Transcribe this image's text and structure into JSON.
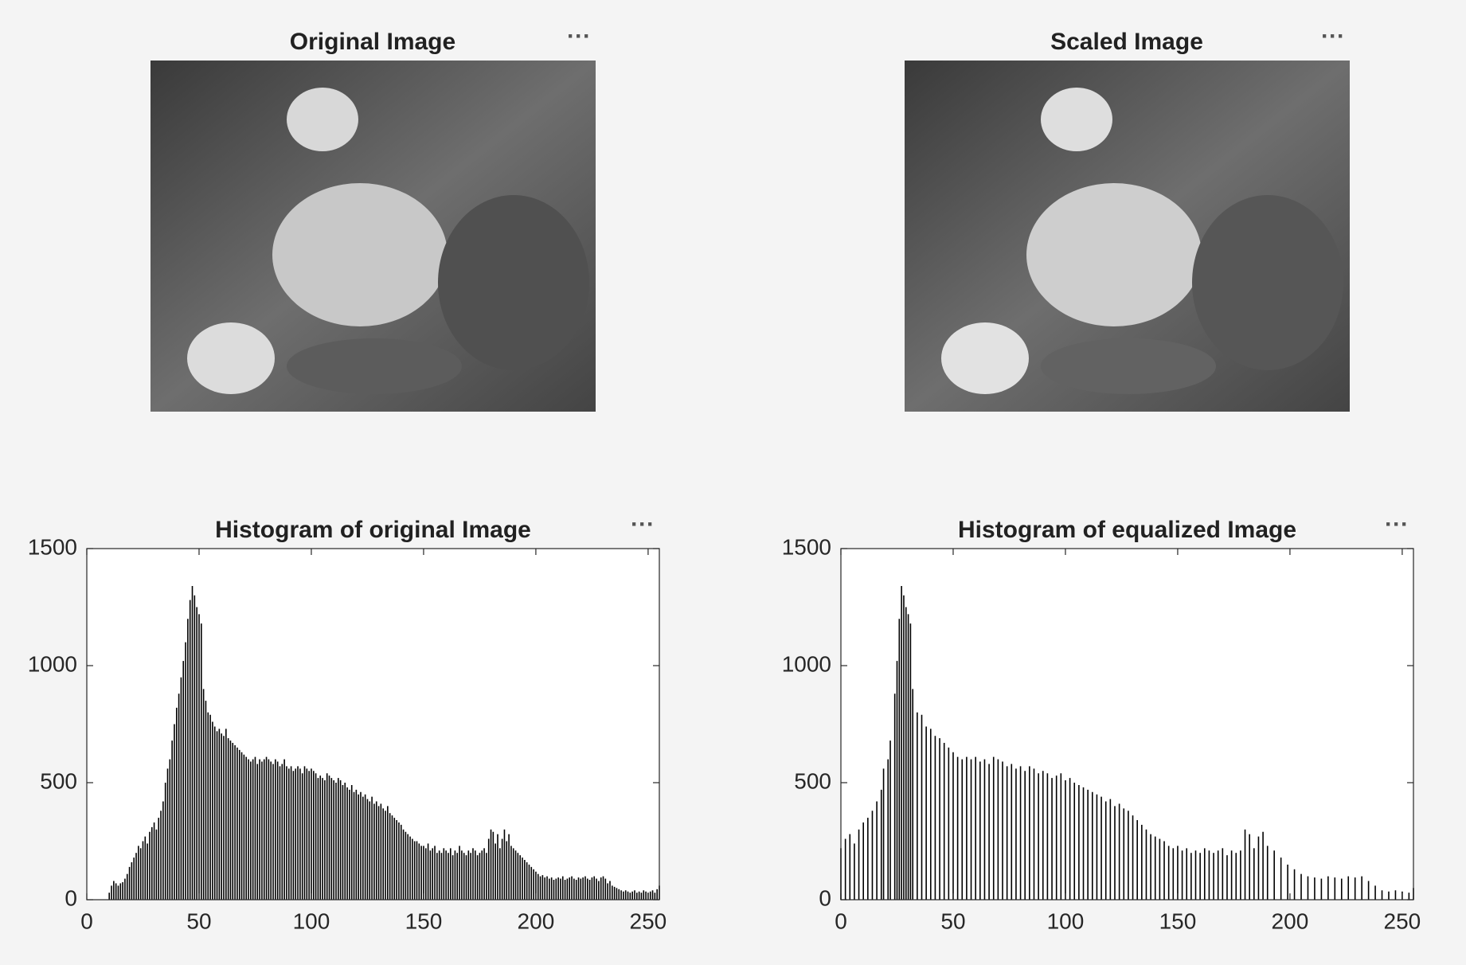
{
  "images": [
    {
      "title": "Original Image"
    },
    {
      "title": "Scaled Image"
    }
  ],
  "chart_data": [
    {
      "type": "stem",
      "title": "Histogram of original Image",
      "color": "#000000",
      "xlim": [
        0,
        255
      ],
      "xticks": [
        0,
        50,
        100,
        150,
        200,
        250
      ],
      "ylim": [
        0,
        1500
      ],
      "yticks": [
        0,
        500,
        1000,
        1500
      ],
      "x": [
        10,
        11,
        12,
        13,
        14,
        15,
        16,
        17,
        18,
        19,
        20,
        21,
        22,
        23,
        24,
        25,
        26,
        27,
        28,
        29,
        30,
        31,
        32,
        33,
        34,
        35,
        36,
        37,
        38,
        39,
        40,
        41,
        42,
        43,
        44,
        45,
        46,
        47,
        48,
        49,
        50,
        51,
        52,
        53,
        54,
        55,
        56,
        57,
        58,
        59,
        60,
        61,
        62,
        63,
        64,
        65,
        66,
        67,
        68,
        69,
        70,
        71,
        72,
        73,
        74,
        75,
        76,
        77,
        78,
        79,
        80,
        81,
        82,
        83,
        84,
        85,
        86,
        87,
        88,
        89,
        90,
        91,
        92,
        93,
        94,
        95,
        96,
        97,
        98,
        99,
        100,
        101,
        102,
        103,
        104,
        105,
        106,
        107,
        108,
        109,
        110,
        111,
        112,
        113,
        114,
        115,
        116,
        117,
        118,
        119,
        120,
        121,
        122,
        123,
        124,
        125,
        126,
        127,
        128,
        129,
        130,
        131,
        132,
        133,
        134,
        135,
        136,
        137,
        138,
        139,
        140,
        141,
        142,
        143,
        144,
        145,
        146,
        147,
        148,
        149,
        150,
        151,
        152,
        153,
        154,
        155,
        156,
        157,
        158,
        159,
        160,
        161,
        162,
        163,
        164,
        165,
        166,
        167,
        168,
        169,
        170,
        171,
        172,
        173,
        174,
        175,
        176,
        177,
        178,
        179,
        180,
        181,
        182,
        183,
        184,
        185,
        186,
        187,
        188,
        189,
        190,
        191,
        192,
        193,
        194,
        195,
        196,
        197,
        198,
        199,
        200,
        201,
        202,
        203,
        204,
        205,
        206,
        207,
        208,
        209,
        210,
        211,
        212,
        213,
        214,
        215,
        216,
        217,
        218,
        219,
        220,
        221,
        222,
        223,
        224,
        225,
        226,
        227,
        228,
        229,
        230,
        231,
        232,
        233,
        234,
        235,
        236,
        237,
        238,
        239,
        240,
        241,
        242,
        243,
        244,
        245,
        246,
        247,
        248,
        249,
        250,
        251,
        252,
        253,
        254,
        255
      ],
      "values": [
        30,
        60,
        80,
        70,
        60,
        70,
        75,
        90,
        110,
        140,
        160,
        180,
        200,
        230,
        220,
        250,
        270,
        240,
        290,
        310,
        330,
        300,
        350,
        380,
        420,
        500,
        560,
        600,
        680,
        750,
        820,
        880,
        950,
        1020,
        1100,
        1200,
        1280,
        1340,
        1300,
        1250,
        1220,
        1180,
        900,
        850,
        800,
        790,
        760,
        740,
        720,
        730,
        710,
        700,
        730,
        690,
        680,
        670,
        660,
        650,
        640,
        630,
        620,
        610,
        600,
        590,
        600,
        610,
        580,
        600,
        590,
        600,
        610,
        600,
        590,
        580,
        600,
        590,
        570,
        580,
        600,
        570,
        560,
        570,
        550,
        560,
        570,
        560,
        540,
        570,
        560,
        550,
        560,
        550,
        540,
        520,
        530,
        520,
        510,
        540,
        530,
        520,
        510,
        500,
        520,
        510,
        490,
        500,
        480,
        470,
        490,
        460,
        470,
        450,
        460,
        440,
        450,
        430,
        420,
        440,
        410,
        420,
        400,
        410,
        390,
        380,
        400,
        370,
        360,
        350,
        340,
        330,
        320,
        300,
        290,
        280,
        270,
        260,
        250,
        250,
        240,
        230,
        230,
        220,
        240,
        210,
        220,
        230,
        200,
        210,
        200,
        220,
        210,
        200,
        220,
        190,
        210,
        200,
        230,
        210,
        200,
        190,
        210,
        200,
        220,
        210,
        190,
        200,
        210,
        220,
        200,
        260,
        300,
        290,
        240,
        280,
        220,
        260,
        300,
        250,
        280,
        230,
        220,
        210,
        200,
        190,
        180,
        170,
        160,
        150,
        140,
        130,
        120,
        110,
        100,
        105,
        95,
        100,
        90,
        95,
        85,
        90,
        95,
        90,
        100,
        85,
        90,
        95,
        100,
        90,
        85,
        95,
        90,
        95,
        100,
        90,
        85,
        95,
        100,
        90,
        80,
        95,
        100,
        90,
        70,
        80,
        60,
        55,
        50,
        45,
        40,
        35,
        40,
        35,
        30,
        35,
        40,
        30,
        35,
        30,
        40,
        35,
        30,
        35,
        40,
        30,
        45,
        60
      ]
    },
    {
      "type": "stem",
      "title": "Histogram of equalized Image",
      "color": "#000000",
      "xlim": [
        0,
        255
      ],
      "xticks": [
        0,
        50,
        100,
        150,
        200,
        250
      ],
      "ylim": [
        0,
        1500
      ],
      "yticks": [
        0,
        500,
        1000,
        1500
      ],
      "x": [
        0,
        2,
        4,
        6,
        8,
        10,
        12,
        14,
        16,
        18,
        19,
        21,
        22,
        24,
        25,
        26,
        27,
        28,
        29,
        30,
        31,
        32,
        34,
        36,
        38,
        40,
        42,
        44,
        46,
        48,
        50,
        52,
        54,
        56,
        58,
        60,
        62,
        64,
        66,
        68,
        70,
        72,
        74,
        76,
        78,
        80,
        82,
        84,
        86,
        88,
        90,
        92,
        94,
        96,
        98,
        100,
        102,
        104,
        106,
        108,
        110,
        112,
        114,
        116,
        118,
        120,
        122,
        124,
        126,
        128,
        130,
        132,
        134,
        136,
        138,
        140,
        142,
        144,
        146,
        148,
        150,
        152,
        154,
        156,
        158,
        160,
        162,
        164,
        166,
        168,
        170,
        172,
        174,
        176,
        178,
        180,
        182,
        184,
        186,
        188,
        190,
        193,
        196,
        199,
        202,
        205,
        208,
        211,
        214,
        217,
        220,
        223,
        226,
        229,
        232,
        235,
        238,
        241,
        244,
        247,
        250,
        253,
        255
      ],
      "values": [
        220,
        260,
        280,
        240,
        300,
        330,
        350,
        380,
        420,
        470,
        560,
        600,
        680,
        880,
        1020,
        1200,
        1340,
        1300,
        1250,
        1220,
        1180,
        900,
        800,
        790,
        740,
        730,
        700,
        690,
        670,
        650,
        630,
        610,
        600,
        610,
        600,
        610,
        590,
        600,
        580,
        610,
        600,
        590,
        570,
        580,
        560,
        570,
        550,
        570,
        560,
        540,
        550,
        540,
        520,
        530,
        540,
        510,
        520,
        500,
        490,
        480,
        470,
        460,
        450,
        440,
        420,
        430,
        400,
        410,
        390,
        380,
        360,
        340,
        320,
        300,
        280,
        270,
        260,
        250,
        230,
        220,
        230,
        210,
        220,
        200,
        210,
        200,
        220,
        210,
        200,
        210,
        220,
        190,
        210,
        200,
        210,
        300,
        280,
        220,
        270,
        290,
        230,
        210,
        180,
        150,
        130,
        110,
        100,
        95,
        90,
        100,
        95,
        90,
        100,
        95,
        100,
        80,
        60,
        40,
        35,
        40,
        35,
        30,
        50
      ]
    }
  ]
}
